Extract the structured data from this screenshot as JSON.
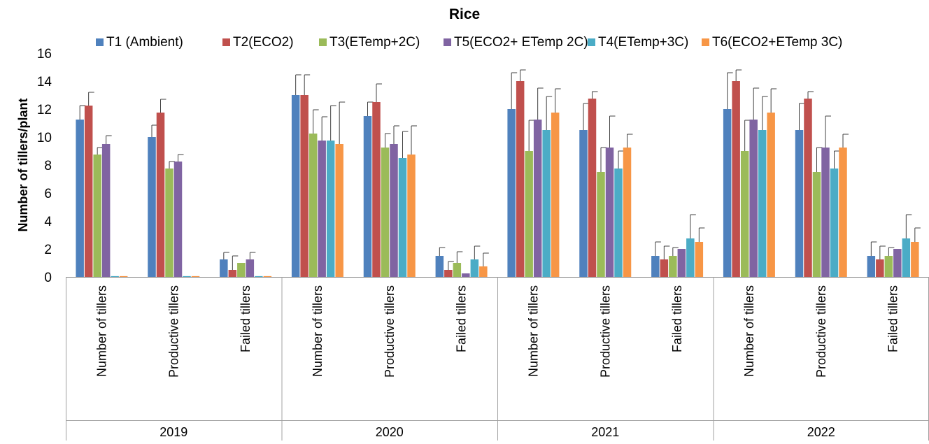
{
  "chart_data": {
    "type": "bar",
    "title": "Rice",
    "ylabel": "Number of tillers/plant",
    "xlabel": "",
    "ylim": [
      0,
      16
    ],
    "yticks": [
      0,
      2,
      4,
      6,
      8,
      10,
      12,
      14,
      16
    ],
    "legend_position": "top",
    "grid": false,
    "groups": [
      {
        "label": "2019",
        "categories": [
          "Number of tillers",
          "Productive tillers",
          "Failed tillers"
        ]
      },
      {
        "label": "2020",
        "categories": [
          "Number of tillers",
          "Productive tillers",
          "Failed tillers"
        ]
      },
      {
        "label": "2021",
        "categories": [
          "Number of tillers",
          "Productive tillers",
          "Failed tillers"
        ]
      },
      {
        "label": "2022",
        "categories": [
          "Number of tillers",
          "Productive tillers",
          "Failed tillers"
        ]
      }
    ],
    "series": [
      {
        "name": "T1 (Ambient)",
        "color": "#4F81BD",
        "values": [
          11.25,
          10.0,
          1.25,
          13.0,
          11.5,
          1.5,
          12.0,
          10.5,
          1.5,
          12.0,
          10.5,
          1.5
        ],
        "errors": [
          1.0,
          0.85,
          0.5,
          1.45,
          1.0,
          0.6,
          2.6,
          1.9,
          1.0,
          2.6,
          1.9,
          1.0
        ]
      },
      {
        "name": "T2(ECO2)",
        "color": "#C0504D",
        "values": [
          12.25,
          11.75,
          0.5,
          13.0,
          12.5,
          0.5,
          14.0,
          12.75,
          1.25,
          14.0,
          12.75,
          1.25
        ],
        "errors": [
          0.95,
          0.95,
          1.0,
          1.45,
          1.3,
          0.6,
          0.8,
          0.5,
          0.95,
          0.8,
          0.5,
          0.95
        ]
      },
      {
        "name": "T3(ETemp+2C)",
        "color": "#9BBB59",
        "values": [
          8.75,
          7.75,
          1.0,
          10.25,
          9.25,
          1.0,
          9.0,
          7.5,
          1.5,
          9.0,
          7.5,
          1.5
        ],
        "errors": [
          0.5,
          0.5,
          0.0,
          1.7,
          1.0,
          0.8,
          2.2,
          1.75,
          0.6,
          2.2,
          1.75,
          0.6
        ]
      },
      {
        "name": "T5(ECO2+ ETemp 2C)",
        "color": "#8064A2",
        "values": [
          9.5,
          8.25,
          1.25,
          9.75,
          9.5,
          0.25,
          11.25,
          9.25,
          2.0,
          11.25,
          9.25,
          2.0
        ],
        "errors": [
          0.6,
          0.5,
          0.5,
          1.7,
          1.3,
          0.0,
          2.25,
          2.25,
          0.0,
          2.25,
          2.25,
          0.0
        ]
      },
      {
        "name": "T4(ETemp+3C)",
        "color": "#4BACC6",
        "values": [
          0,
          0,
          0,
          9.75,
          8.5,
          1.25,
          10.5,
          7.75,
          2.75,
          10.5,
          7.75,
          2.75
        ],
        "errors": [
          0,
          0,
          0,
          2.5,
          1.9,
          0.95,
          2.4,
          1.25,
          1.7,
          2.4,
          1.25,
          1.7
        ]
      },
      {
        "name": "T6(ECO2+ETemp 3C)",
        "color": "#F79646",
        "values": [
          0,
          0,
          0,
          9.5,
          8.75,
          0.75,
          11.75,
          9.25,
          2.5,
          11.75,
          9.25,
          2.5
        ],
        "errors": [
          0,
          0,
          0,
          3.0,
          2.05,
          0.95,
          1.7,
          0.95,
          1.0,
          1.7,
          0.95,
          1.0
        ]
      }
    ]
  }
}
